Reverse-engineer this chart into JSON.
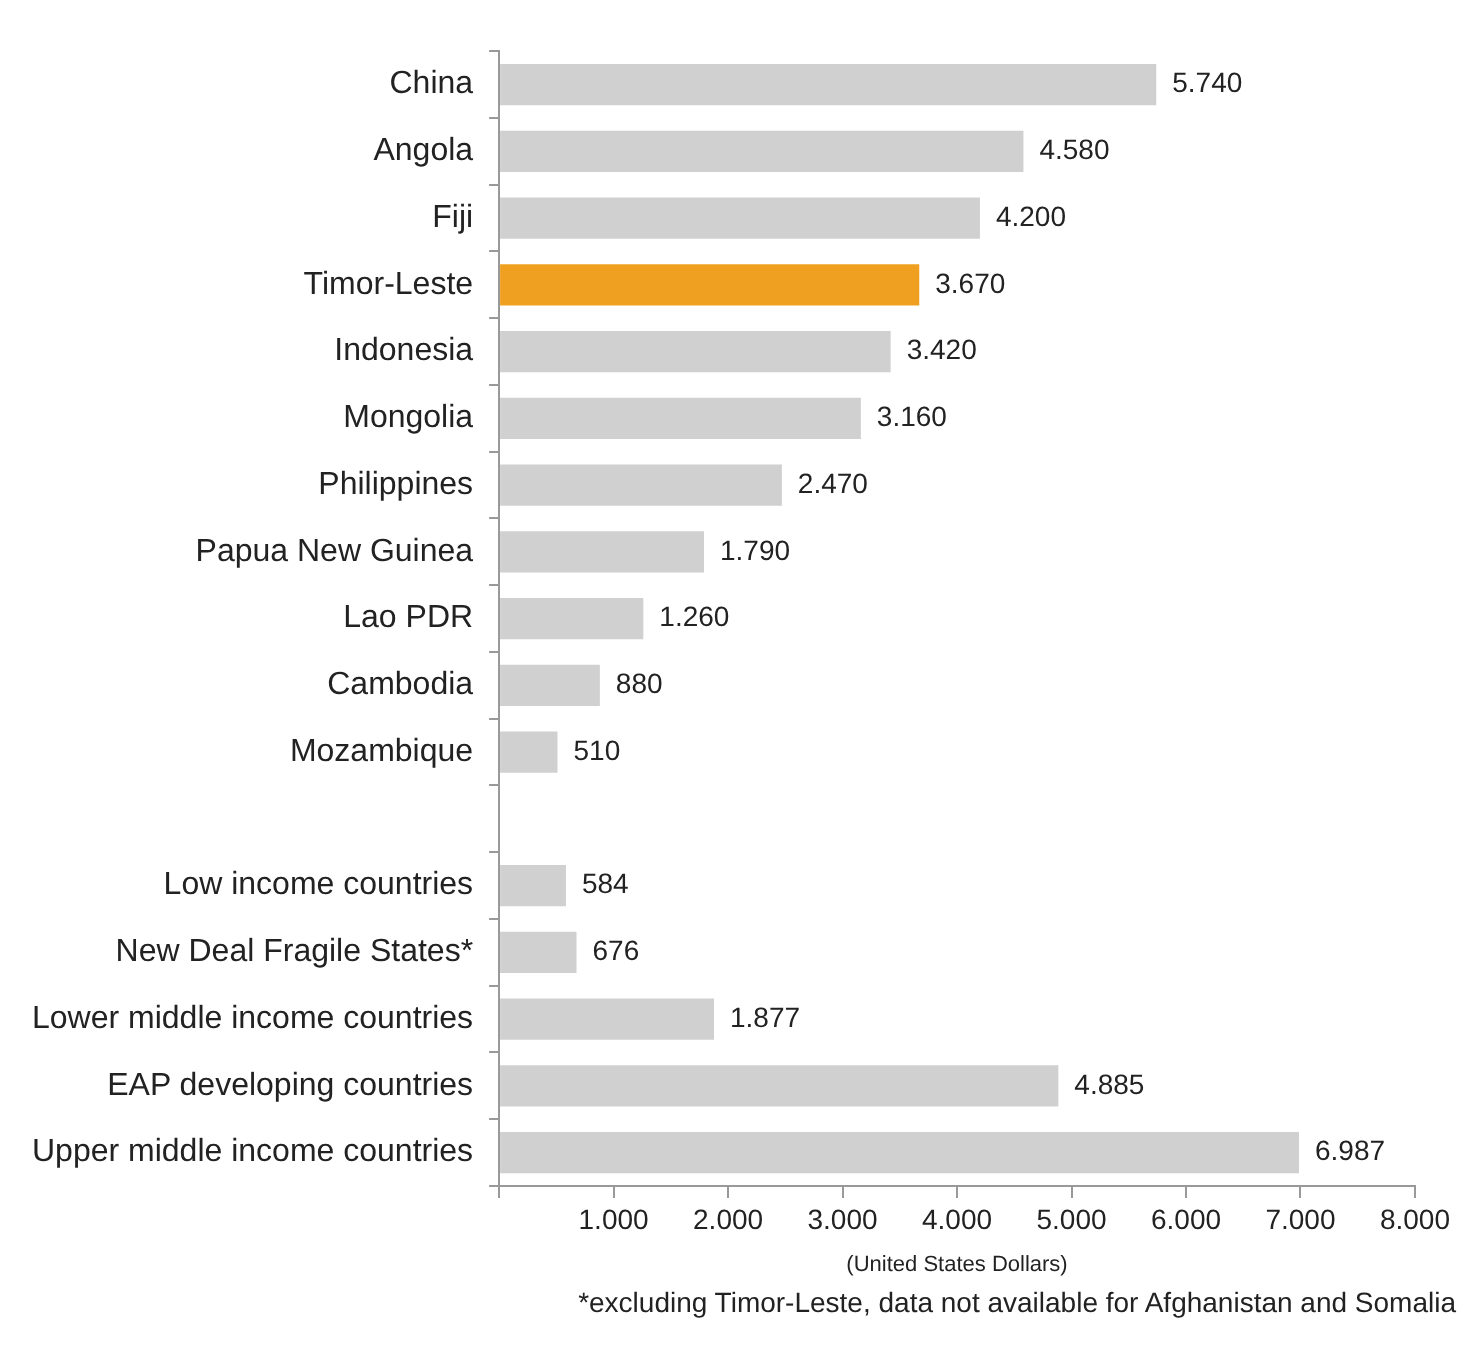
{
  "chart_data": {
    "type": "bar",
    "orientation": "horizontal",
    "categories": [
      "China",
      "Angola",
      "Fiji",
      "Timor-Leste",
      "Indonesia",
      "Mongolia",
      "Philippines",
      "Papua New Guinea",
      "Lao PDR",
      "Cambodia",
      "Mozambique",
      null,
      "Low income countries",
      "New Deal Fragile States*",
      "Lower middle income countries",
      "EAP developing countries",
      "Upper middle income countries"
    ],
    "values": [
      5740,
      4580,
      4200,
      3670,
      3420,
      3160,
      2470,
      1790,
      1260,
      880,
      510,
      null,
      584,
      676,
      1877,
      4885,
      6987
    ],
    "colors": [
      "#d0d0d0",
      "#d0d0d0",
      "#d0d0d0",
      "#f0a020",
      "#d0d0d0",
      "#d0d0d0",
      "#d0d0d0",
      "#d0d0d0",
      "#d0d0d0",
      "#d0d0d0",
      "#d0d0d0",
      "#d0d0d0",
      "#d0d0d0",
      "#d0d0d0",
      "#d0d0d0",
      "#d0d0d0",
      "#d0d0d0"
    ],
    "value_labels": [
      "5.740",
      "4.580",
      "4.200",
      "3.670",
      "3.420",
      "3.160",
      "2.470",
      "1.790",
      "1.260",
      "880",
      "510",
      null,
      "584",
      "676",
      "1.877",
      "4.885",
      "6.987"
    ],
    "xlim": [
      0,
      8000
    ],
    "xticks": [
      {
        "value": 0,
        "label": null
      },
      {
        "value": 1000,
        "label": "1.000"
      },
      {
        "value": 2000,
        "label": "2.000"
      },
      {
        "value": 3000,
        "label": "3.000"
      },
      {
        "value": 4000,
        "label": "4.000"
      },
      {
        "value": 5000,
        "label": "5.000"
      },
      {
        "value": 6000,
        "label": "6.000"
      },
      {
        "value": 7000,
        "label": "7.000"
      },
      {
        "value": 8000,
        "label": "8.000"
      }
    ],
    "xlabel": "(United States Dollars)",
    "annotations": [
      "*excluding Timor-Leste, data not available for Afghanistan and Somalia"
    ]
  }
}
